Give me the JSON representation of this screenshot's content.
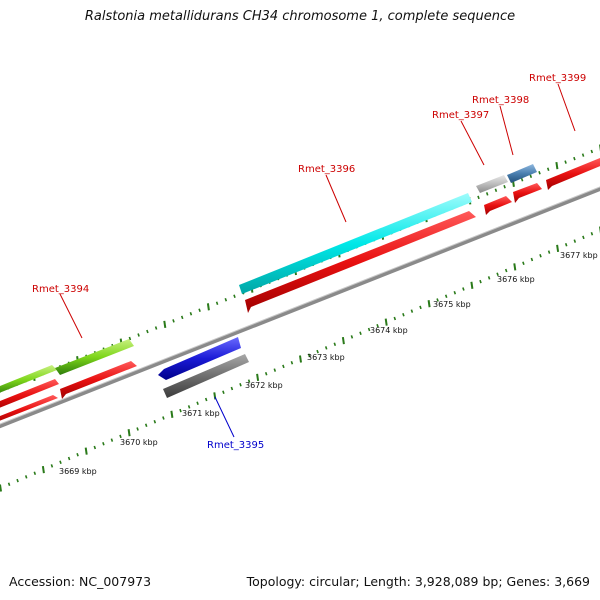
{
  "title": "Ralstonia metallidurans CH34 chromosome 1, complete sequence",
  "footer": {
    "accession": "Accession: NC_007973",
    "summary": "Topology: circular; Length: 3,928,089 bp; Genes: 3,669"
  },
  "scale_labels": [
    "3669 kbp",
    "3670 kbp",
    "3671 kbp",
    "3672 kbp",
    "3673 kbp",
    "3674 kbp",
    "3675 kbp",
    "3676 kbp",
    "3677 kbp"
  ],
  "gene_labels": [
    {
      "text": "Rmet_3394",
      "color": "#cc0000"
    },
    {
      "text": "Rmet_3395",
      "color": "#0000cc"
    },
    {
      "text": "Rmet_3396",
      "color": "#cc0000"
    },
    {
      "text": "Rmet_3397",
      "color": "#cc0000"
    },
    {
      "text": "Rmet_3398",
      "color": "#cc0000"
    },
    {
      "text": "Rmet_3399",
      "color": "#cc0000"
    }
  ],
  "colors": {
    "cds_red": "#e81010",
    "cyan": "#00e8e8",
    "green": "#7ed61a",
    "blue": "#1a1ad6",
    "gray": "#6e6e6e",
    "light_gray": "#bdbdbd",
    "steel_blue": "#4a7fb0",
    "tick_green": "#2a7a1a",
    "backbone": "#8a8a8a"
  }
}
